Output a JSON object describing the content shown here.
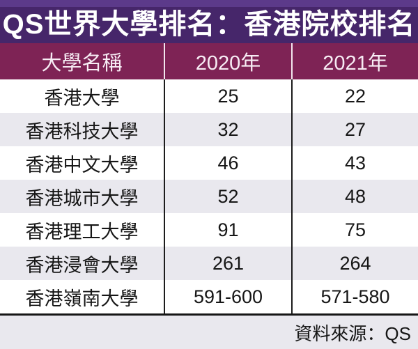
{
  "title": "QS世界大學排名：香港院校排名",
  "chart_data": {
    "type": "table",
    "title": "QS世界大學排名：香港院校排名",
    "columns": [
      "大學名稱",
      "2020年",
      "2021年"
    ],
    "rows": [
      [
        "香港大學",
        "25",
        "22"
      ],
      [
        "香港科技大學",
        "32",
        "27"
      ],
      [
        "香港中文大學",
        "46",
        "43"
      ],
      [
        "香港城市大學",
        "52",
        "48"
      ],
      [
        "香港理工大學",
        "91",
        "75"
      ],
      [
        "香港浸會大學",
        "261",
        "264"
      ],
      [
        "香港嶺南大學",
        "591-600",
        "571-580"
      ]
    ],
    "source": "資料來源：QS"
  },
  "colors": {
    "top_strip_bg": "#5c3a8a",
    "title_bg": "#46266a",
    "title_text": "#ffffff",
    "header_bg": "#7e2355",
    "header_text": "#f7ecf4",
    "row_odd_bg": "#ffffff",
    "row_even_bg": "#e9e8ee",
    "body_text": "#161616",
    "divider_dark": "#1c1c1c",
    "footer_bg": "#e9e8ee"
  }
}
